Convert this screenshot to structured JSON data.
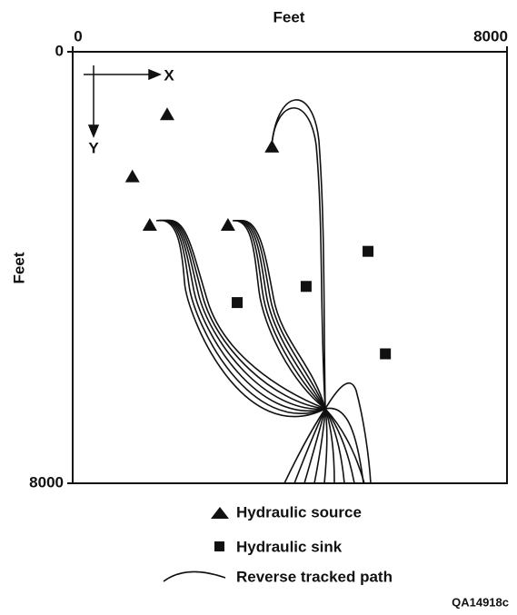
{
  "chart_data": {
    "type": "scatter",
    "x_axis_label": "Feet",
    "y_axis_label": "Feet",
    "xlim": [
      0,
      8000
    ],
    "ylim": [
      0,
      8000
    ],
    "xticks": [
      0,
      8000
    ],
    "yticks": [
      0,
      8000
    ],
    "x_axis_position": "top",
    "y_inverted": true,
    "annotations": [
      "X",
      "Y"
    ],
    "series": [
      {
        "name": "Hydraulic source",
        "marker": "triangle",
        "color": "#111",
        "x": [
          1740,
          1100,
          1420,
          2860,
          3670
        ],
        "values": [
          1150,
          2300,
          3200,
          3200,
          1750
        ]
      },
      {
        "name": "Hydraulic sink",
        "marker": "square",
        "color": "#111",
        "x": [
          3030,
          4300,
          5440,
          5760
        ],
        "values": [
          4650,
          4350,
          3700,
          5600
        ]
      }
    ],
    "path_legend": "Reverse tracked path",
    "figure_id": "QA14918c"
  }
}
